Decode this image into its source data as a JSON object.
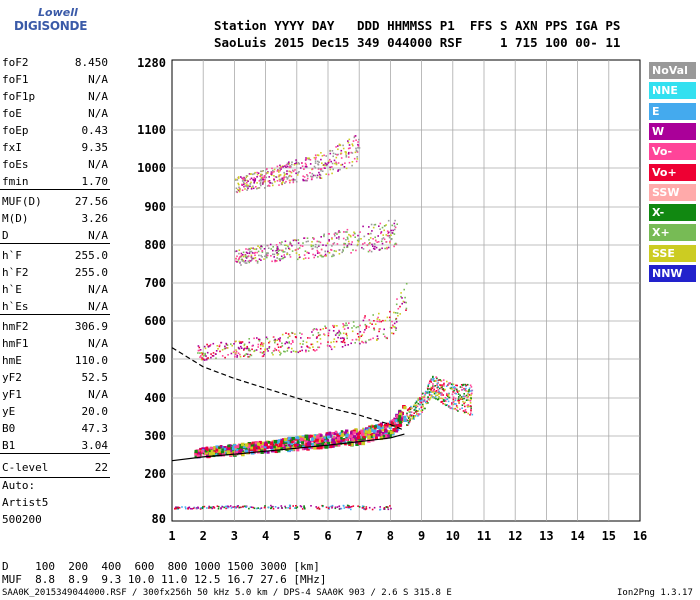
{
  "logo": {
    "line1": "Lowell",
    "line2": "DIGISONDE"
  },
  "header": {
    "line1": "Station YYYY DAY   DDD HHMMSS P1  FFS S AXN PPS IGA PS",
    "line2": "SaoLuis 2015 Dec15 349 044000 RSF     1 715 100 00- 11"
  },
  "params": [
    {
      "name": "foF2",
      "value": "8.450"
    },
    {
      "name": "foF1",
      "value": "N/A"
    },
    {
      "name": "foF1p",
      "value": "N/A"
    },
    {
      "name": "foE",
      "value": "N/A"
    },
    {
      "name": "foEp",
      "value": "0.43"
    },
    {
      "name": "fxI",
      "value": "9.35"
    },
    {
      "name": "foEs",
      "value": "N/A"
    },
    {
      "name": "fmin",
      "value": "1.70"
    },
    {
      "name": "MUF(D)",
      "value": "27.56"
    },
    {
      "name": "M(D)",
      "value": "3.26"
    },
    {
      "name": "D",
      "value": "N/A"
    },
    {
      "name": "h`F",
      "value": "255.0"
    },
    {
      "name": "h`F2",
      "value": "255.0"
    },
    {
      "name": "h`E",
      "value": "N/A"
    },
    {
      "name": "h`Es",
      "value": "N/A"
    },
    {
      "name": "hmF2",
      "value": "306.9"
    },
    {
      "name": "hmF1",
      "value": "N/A"
    },
    {
      "name": "hmE",
      "value": "110.0"
    },
    {
      "name": "yF2",
      "value": "52.5"
    },
    {
      "name": "yF1",
      "value": "N/A"
    },
    {
      "name": "yE",
      "value": "20.0"
    },
    {
      "name": "B0",
      "value": "47.3"
    },
    {
      "name": "B1",
      "value": "3.04"
    }
  ],
  "clevel": {
    "name": "C-level",
    "value": "22"
  },
  "auto": {
    "line1": "Auto:",
    "line2": "Artist5",
    "line3": "500200"
  },
  "legend": [
    {
      "label": "NoVal",
      "color": "#999999"
    },
    {
      "label": "NNE",
      "color": "#33e0f0"
    },
    {
      "label": "E",
      "color": "#44aaee"
    },
    {
      "label": "W",
      "color": "#aa0099"
    },
    {
      "label": "Vo-",
      "color": "#ff4499"
    },
    {
      "label": "Vo+",
      "color": "#ee0033"
    },
    {
      "label": "SSW",
      "color": "#ffaaaa"
    },
    {
      "label": "X-",
      "color": "#118811"
    },
    {
      "label": "X+",
      "color": "#77bb55"
    },
    {
      "label": "SSE",
      "color": "#cccc22"
    },
    {
      "label": "NNW",
      "color": "#2222cc"
    }
  ],
  "bottom": {
    "line1": "D    100  200  400  600  800 1000 1500 3000 [km]",
    "line2": "MUF  8.8  8.9  9.3 10.0 11.0 12.5 16.7 27.6 [MHz]"
  },
  "footer": {
    "left": "SAA0K_2015349044000.RSF / 300fx256h 50 kHz 5.0 km / DPS-4 SAA0K 903 / 2.6 S 315.8 E",
    "right": "Ion2Png 1.3.17"
  },
  "chart_data": {
    "type": "scatter",
    "xlabel": "",
    "ylabel": "",
    "xlim": [
      1,
      16
    ],
    "ylim": [
      80,
      1280
    ],
    "x_ticks": [
      1,
      2,
      3,
      4,
      5,
      6,
      7,
      8,
      9,
      10,
      11,
      12,
      13,
      14,
      15,
      16
    ],
    "y_ticks": [
      80,
      200,
      300,
      400,
      500,
      600,
      700,
      800,
      900,
      1000,
      1100,
      1280
    ],
    "y_scale": "ionogram virtual height (non-uniform)",
    "grid": true,
    "traces": [
      {
        "name": "F2 O-trace",
        "freq": [
          1.7,
          3,
          5,
          7,
          8,
          8.45
        ],
        "height": [
          255,
          262,
          278,
          295,
          315,
          360
        ]
      },
      {
        "name": "F2 2nd hop",
        "freq": [
          1.8,
          4,
          6,
          8,
          8.5
        ],
        "height": [
          510,
          525,
          545,
          580,
          650
        ]
      },
      {
        "name": "F2 3rd hop",
        "freq": [
          3,
          5,
          7,
          8.2
        ],
        "height": [
          760,
          780,
          800,
          820
        ]
      },
      {
        "name": "F2 4th hop",
        "freq": [
          3,
          4.5,
          6,
          7
        ],
        "height": [
          950,
          975,
          1000,
          1040
        ]
      },
      {
        "name": "X-trace",
        "freq": [
          8.5,
          9,
          9.35,
          10,
          10.6
        ],
        "height": [
          340,
          380,
          420,
          390,
          380
        ]
      },
      {
        "name": "Es",
        "freq": [
          1,
          3,
          5,
          8
        ],
        "height": [
          110,
          112,
          112,
          110
        ]
      }
    ],
    "profile_solid": {
      "freq": [
        1,
        2,
        3,
        4,
        5,
        6,
        7,
        8,
        8.45
      ],
      "height": [
        235,
        245,
        252,
        260,
        268,
        276,
        285,
        295,
        305
      ]
    },
    "profile_dashed": {
      "freq": [
        1,
        2,
        3,
        4,
        5,
        6,
        7,
        8,
        8.45
      ],
      "height": [
        530,
        480,
        450,
        425,
        400,
        375,
        355,
        330,
        315
      ]
    }
  }
}
